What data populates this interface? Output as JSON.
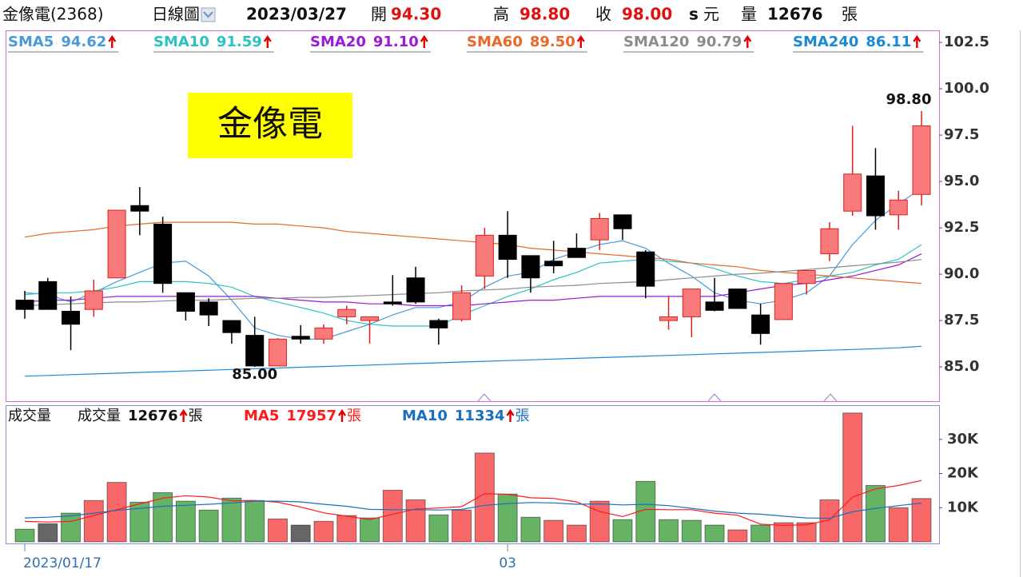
{
  "header": {
    "stock": "金像電(2368)",
    "view": "日線圖",
    "date": "2023/03/27",
    "open_label": "開",
    "open": "94.30",
    "high_label": "高",
    "high": "98.80",
    "close_label": "收",
    "close": "98.00",
    "flag": "s",
    "currency": "元",
    "volume_label": "量",
    "volume": "12676",
    "volume_unit": "張"
  },
  "chart_data": [
    {
      "type": "candlestick",
      "title": "金像電",
      "high_label": "98.80",
      "low_label": "85.00",
      "up_color": "#f87a7a",
      "up_stroke": "#e02020",
      "down_color": "#000000",
      "open": [
        88.6,
        89.6,
        88.0,
        88.1,
        89.8,
        93.7,
        92.7,
        89.0,
        88.5,
        87.5,
        86.7,
        85.05,
        86.65,
        86.5,
        87.7,
        87.5,
        88.5,
        89.8,
        87.5,
        87.55,
        89.9,
        92.1,
        91.0,
        90.7,
        91.4,
        91.85,
        93.2,
        91.2,
        87.5,
        87.7,
        88.5,
        89.2,
        87.8,
        87.55,
        89.5,
        91.1,
        93.4,
        95.3,
        93.2,
        94.3
      ],
      "high": [
        89.1,
        89.8,
        88.8,
        89.7,
        93.45,
        94.7,
        93.1,
        89.0,
        88.7,
        87.5,
        87.7,
        86.55,
        87.25,
        87.3,
        88.3,
        87.7,
        89.95,
        90.4,
        87.6,
        89.4,
        92.5,
        93.4,
        91.0,
        91.8,
        92.2,
        93.3,
        93.2,
        91.3,
        88.8,
        89.2,
        89.8,
        89.2,
        88.4,
        89.5,
        90.2,
        92.8,
        98.0,
        96.8,
        94.5,
        98.8
      ],
      "low": [
        87.6,
        88.1,
        85.9,
        87.7,
        89.8,
        92.1,
        89.0,
        87.5,
        87.2,
        86.25,
        85.0,
        85.05,
        86.25,
        86.25,
        87.3,
        86.25,
        88.3,
        88.4,
        86.2,
        87.45,
        89.2,
        89.8,
        89.0,
        90.05,
        90.9,
        91.3,
        91.85,
        88.7,
        87.0,
        86.6,
        88.0,
        88.15,
        86.2,
        87.55,
        88.9,
        90.7,
        93.15,
        92.4,
        92.4,
        93.7
      ],
      "close": [
        88.1,
        88.1,
        87.3,
        89.1,
        93.45,
        93.4,
        89.5,
        88.0,
        87.8,
        86.85,
        85.05,
        86.5,
        86.5,
        87.1,
        88.1,
        87.7,
        88.4,
        88.5,
        87.1,
        89.0,
        92.1,
        90.8,
        89.8,
        90.45,
        90.9,
        93.0,
        92.45,
        89.35,
        87.7,
        89.2,
        88.05,
        88.15,
        86.8,
        89.5,
        90.2,
        92.45,
        95.4,
        93.15,
        94.0,
        98.0
      ],
      "series": [
        {
          "name": "SMA5",
          "legend_value": "94.62",
          "color": "#4a9ad8",
          "values": [
            89.0,
            88.9,
            88.5,
            89.0,
            89.6,
            90.1,
            90.6,
            90.7,
            89.9,
            88.6,
            87.1,
            86.7,
            86.5,
            86.5,
            86.9,
            87.3,
            87.8,
            88.2,
            88.2,
            88.5,
            89.3,
            89.9,
            90.1,
            90.8,
            91.2,
            91.6,
            91.8,
            91.4,
            90.6,
            89.9,
            89.0,
            88.6,
            88.4,
            88.6,
            89.0,
            89.9,
            91.6,
            92.9,
            93.8,
            94.62
          ]
        },
        {
          "name": "SMA10",
          "legend_value": "91.59",
          "color": "#2cc2c2",
          "values": [
            88.9,
            89.0,
            89.0,
            89.1,
            89.3,
            89.6,
            89.6,
            89.6,
            89.5,
            89.3,
            88.8,
            88.5,
            88.2,
            87.9,
            87.5,
            87.3,
            87.2,
            87.2,
            87.2,
            87.8,
            88.3,
            88.8,
            89.2,
            89.7,
            90.1,
            90.6,
            90.7,
            90.8,
            90.7,
            90.6,
            90.3,
            89.9,
            89.6,
            89.5,
            89.7,
            89.9,
            90.1,
            90.5,
            90.8,
            91.59
          ]
        },
        {
          "name": "SMA20",
          "legend_value": "91.10",
          "color": "#9a1ad6",
          "values": [
            88.5,
            88.6,
            88.6,
            88.7,
            88.8,
            88.8,
            88.8,
            88.8,
            88.8,
            88.8,
            88.8,
            88.7,
            88.6,
            88.5,
            88.5,
            88.4,
            88.4,
            88.3,
            88.3,
            88.3,
            88.4,
            88.5,
            88.6,
            88.6,
            88.7,
            88.8,
            88.8,
            88.8,
            88.8,
            88.8,
            88.8,
            89.0,
            89.2,
            89.4,
            89.5,
            89.7,
            89.9,
            90.2,
            90.5,
            91.1
          ]
        },
        {
          "name": "SMA60",
          "legend_value": "89.50",
          "color": "#e8682a",
          "values": [
            92.0,
            92.2,
            92.3,
            92.4,
            92.6,
            92.7,
            92.8,
            92.8,
            92.8,
            92.8,
            92.7,
            92.7,
            92.6,
            92.5,
            92.3,
            92.2,
            92.1,
            92.0,
            91.9,
            91.8,
            91.7,
            91.6,
            91.4,
            91.3,
            91.2,
            91.1,
            91.0,
            90.9,
            90.8,
            90.6,
            90.5,
            90.4,
            90.2,
            90.1,
            90.0,
            89.9,
            89.8,
            89.7,
            89.6,
            89.5
          ]
        },
        {
          "name": "SMA120",
          "legend_value": "90.79",
          "color": "#8c8c8c",
          "values": [
            88.3,
            88.35,
            88.4,
            88.45,
            88.5,
            88.5,
            88.55,
            88.6,
            88.6,
            88.65,
            88.7,
            88.7,
            88.75,
            88.75,
            88.8,
            88.85,
            88.9,
            88.95,
            89.0,
            89.1,
            89.15,
            89.2,
            89.3,
            89.35,
            89.4,
            89.5,
            89.55,
            89.6,
            89.7,
            89.8,
            89.9,
            90.0,
            90.05,
            90.15,
            90.25,
            90.35,
            90.45,
            90.55,
            90.65,
            90.79
          ]
        },
        {
          "name": "SMA240",
          "legend_value": "86.11",
          "color": "#1b8ad3",
          "values": [
            84.5,
            84.54,
            84.58,
            84.62,
            84.66,
            84.7,
            84.74,
            84.78,
            84.82,
            84.86,
            84.9,
            84.94,
            84.98,
            85.02,
            85.06,
            85.1,
            85.14,
            85.18,
            85.22,
            85.26,
            85.3,
            85.34,
            85.38,
            85.42,
            85.46,
            85.5,
            85.54,
            85.58,
            85.62,
            85.66,
            85.7,
            85.74,
            85.78,
            85.82,
            85.86,
            85.9,
            85.94,
            85.98,
            86.03,
            86.11
          ]
        }
      ],
      "ylim": [
        83.15,
        103.15
      ],
      "yticks": [
        {
          "value": 85,
          "label": "85.0"
        },
        87.5,
        {
          "value": 90,
          "label": "90.0"
        },
        92.5,
        {
          "value": 95,
          "label": "95.0"
        },
        97.5,
        {
          "value": 100,
          "label": "100.0"
        },
        102.5
      ]
    },
    {
      "type": "bar",
      "title": "成交量",
      "name": "成交量",
      "unit": "張",
      "categories": [
        "2023/01/17",
        null,
        null,
        null,
        null,
        null,
        null,
        null,
        null,
        null,
        null,
        null,
        null,
        null,
        null,
        null,
        null,
        null,
        null,
        null,
        null,
        "03",
        null,
        null,
        null,
        null,
        null,
        null,
        null,
        null,
        null,
        null,
        null,
        null,
        null,
        null,
        null,
        null,
        null,
        null
      ],
      "values": [
        3700,
        5300,
        8400,
        12100,
        17400,
        11600,
        14400,
        11900,
        9300,
        12800,
        12100,
        6700,
        4900,
        6000,
        7700,
        7000,
        15100,
        12300,
        7900,
        9300,
        26000,
        14000,
        7200,
        6300,
        4900,
        11900,
        6500,
        17700,
        6500,
        6300,
        4900,
        3500,
        4900,
        5600,
        5600,
        12300,
        37700,
        16500,
        10000,
        12676
      ],
      "colors": [
        "#66b366",
        "#666666",
        "#66b366",
        "#f86868",
        "#f86868",
        "#66b366",
        "#66b366",
        "#66b366",
        "#66b366",
        "#66b366",
        "#66b366",
        "#f86868",
        "#666666",
        "#f86868",
        "#f86868",
        "#66b366",
        "#f86868",
        "#f86868",
        "#66b366",
        "#f86868",
        "#f86868",
        "#66b366",
        "#66b366",
        "#f86868",
        "#f86868",
        "#f86868",
        "#66b366",
        "#66b366",
        "#66b366",
        "#66b366",
        "#66b366",
        "#f86868",
        "#66b366",
        "#f86868",
        "#f86868",
        "#f86868",
        "#f86868",
        "#66b366",
        "#f86868",
        "#f86868"
      ],
      "series": [
        {
          "name": "MA5",
          "color": "#ff1a1a",
          "values": [
            6000,
            5800,
            6000,
            7700,
            9400,
            11100,
            12800,
            13500,
            13100,
            12000,
            12100,
            11600,
            10200,
            8500,
            7500,
            6500,
            8100,
            9600,
            9900,
            10300,
            14100,
            13900,
            12900,
            12700,
            11700,
            8900,
            7400,
            9500,
            9400,
            9400,
            8400,
            7800,
            5200,
            4800,
            5000,
            6400,
            13100,
            15500,
            16500,
            17957
          ]
        },
        {
          "name": "MA10",
          "color": "#1a6fc0",
          "values": [
            7000,
            7200,
            7600,
            8400,
            9200,
            9800,
            10400,
            10700,
            11000,
            11400,
            11900,
            11900,
            11700,
            11000,
            10400,
            9500,
            9400,
            9400,
            9300,
            9500,
            10700,
            11200,
            11500,
            11400,
            11000,
            11100,
            10800,
            11000,
            10600,
            9800,
            9000,
            8400,
            8100,
            7500,
            7000,
            6900,
            8800,
            9800,
            10600,
            11334
          ]
        }
      ],
      "ylim": [
        0,
        40000
      ],
      "yticks": [
        {
          "value": 10000,
          "label": "10K"
        },
        {
          "value": 20000,
          "label": "20K"
        },
        {
          "value": 30000,
          "label": "30K"
        }
      ]
    }
  ]
}
